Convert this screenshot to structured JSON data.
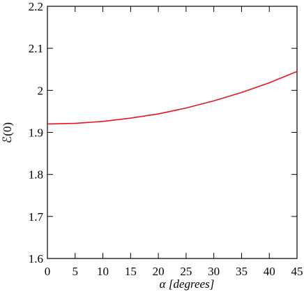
{
  "chart_data": {
    "type": "line",
    "x_label": "α [degrees]",
    "y_label": "ℰ(0)",
    "x": [
      0,
      5,
      10,
      15,
      20,
      25,
      30,
      35,
      40,
      45
    ],
    "series": [
      {
        "name": "ℰ(0)",
        "color": "#e8141c",
        "values": [
          1.92,
          1.9215,
          1.926,
          1.934,
          1.944,
          1.958,
          1.975,
          1.995,
          2.018,
          2.045
        ]
      }
    ],
    "xlim": [
      0,
      45
    ],
    "xticks": [
      0,
      5,
      10,
      15,
      20,
      25,
      30,
      35,
      40,
      45
    ],
    "ylim": [
      1.6,
      2.2
    ],
    "yticks": [
      1.6,
      1.7,
      1.8,
      1.9,
      2,
      2.1,
      2.2
    ]
  }
}
